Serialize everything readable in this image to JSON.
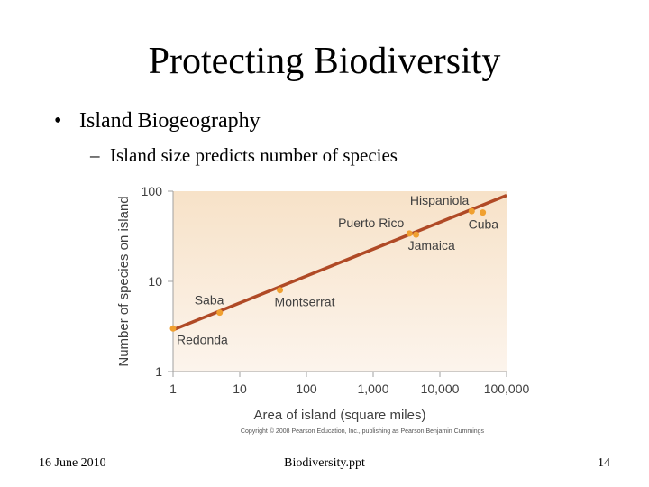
{
  "slide": {
    "title": "Protecting Biodiversity",
    "bullet": "Island Biogeography",
    "subbullet": "Island size predicts number of species",
    "bullet_marker": "•",
    "sub_marker": "–"
  },
  "footer": {
    "date": "16 June 2010",
    "filename": "Biodiversity.ppt",
    "page_number": "14"
  },
  "chart_data": {
    "type": "scatter",
    "xlabel": "Area of island (square miles)",
    "ylabel": "Number of species on island",
    "x_scale": "log",
    "y_scale": "log",
    "xlim": [
      1,
      100000
    ],
    "ylim": [
      1,
      100
    ],
    "x_ticks": [
      "1",
      "10",
      "100",
      "1,000",
      "10,000",
      "100,000"
    ],
    "y_ticks": [
      "1",
      "10",
      "100"
    ],
    "points": [
      {
        "label": "Redonda",
        "x": 1,
        "y": 3
      },
      {
        "label": "Saba",
        "x": 5,
        "y": 4.5
      },
      {
        "label": "Montserrat",
        "x": 40,
        "y": 8
      },
      {
        "label": "Puerto Rico",
        "x": 3500,
        "y": 34
      },
      {
        "label": "Jamaica",
        "x": 4400,
        "y": 33
      },
      {
        "label": "Hispaniola",
        "x": 30000,
        "y": 60
      },
      {
        "label": "Cuba",
        "x": 44000,
        "y": 58
      }
    ],
    "trend_line": {
      "x": [
        1,
        100000
      ],
      "y": [
        2.9,
        90
      ]
    },
    "grid": false,
    "legend": "none",
    "credit": "Copyright © 2008 Pearson Education, Inc., publishing as Pearson Benjamin Cummings",
    "colors": {
      "background_top": "#f7e2c8",
      "background_bottom": "#fcf4ec",
      "trend_line": "#b04a26",
      "points": "#f0a030",
      "axis": "#a0a0a0",
      "label_text": "#3f3f3f"
    }
  }
}
